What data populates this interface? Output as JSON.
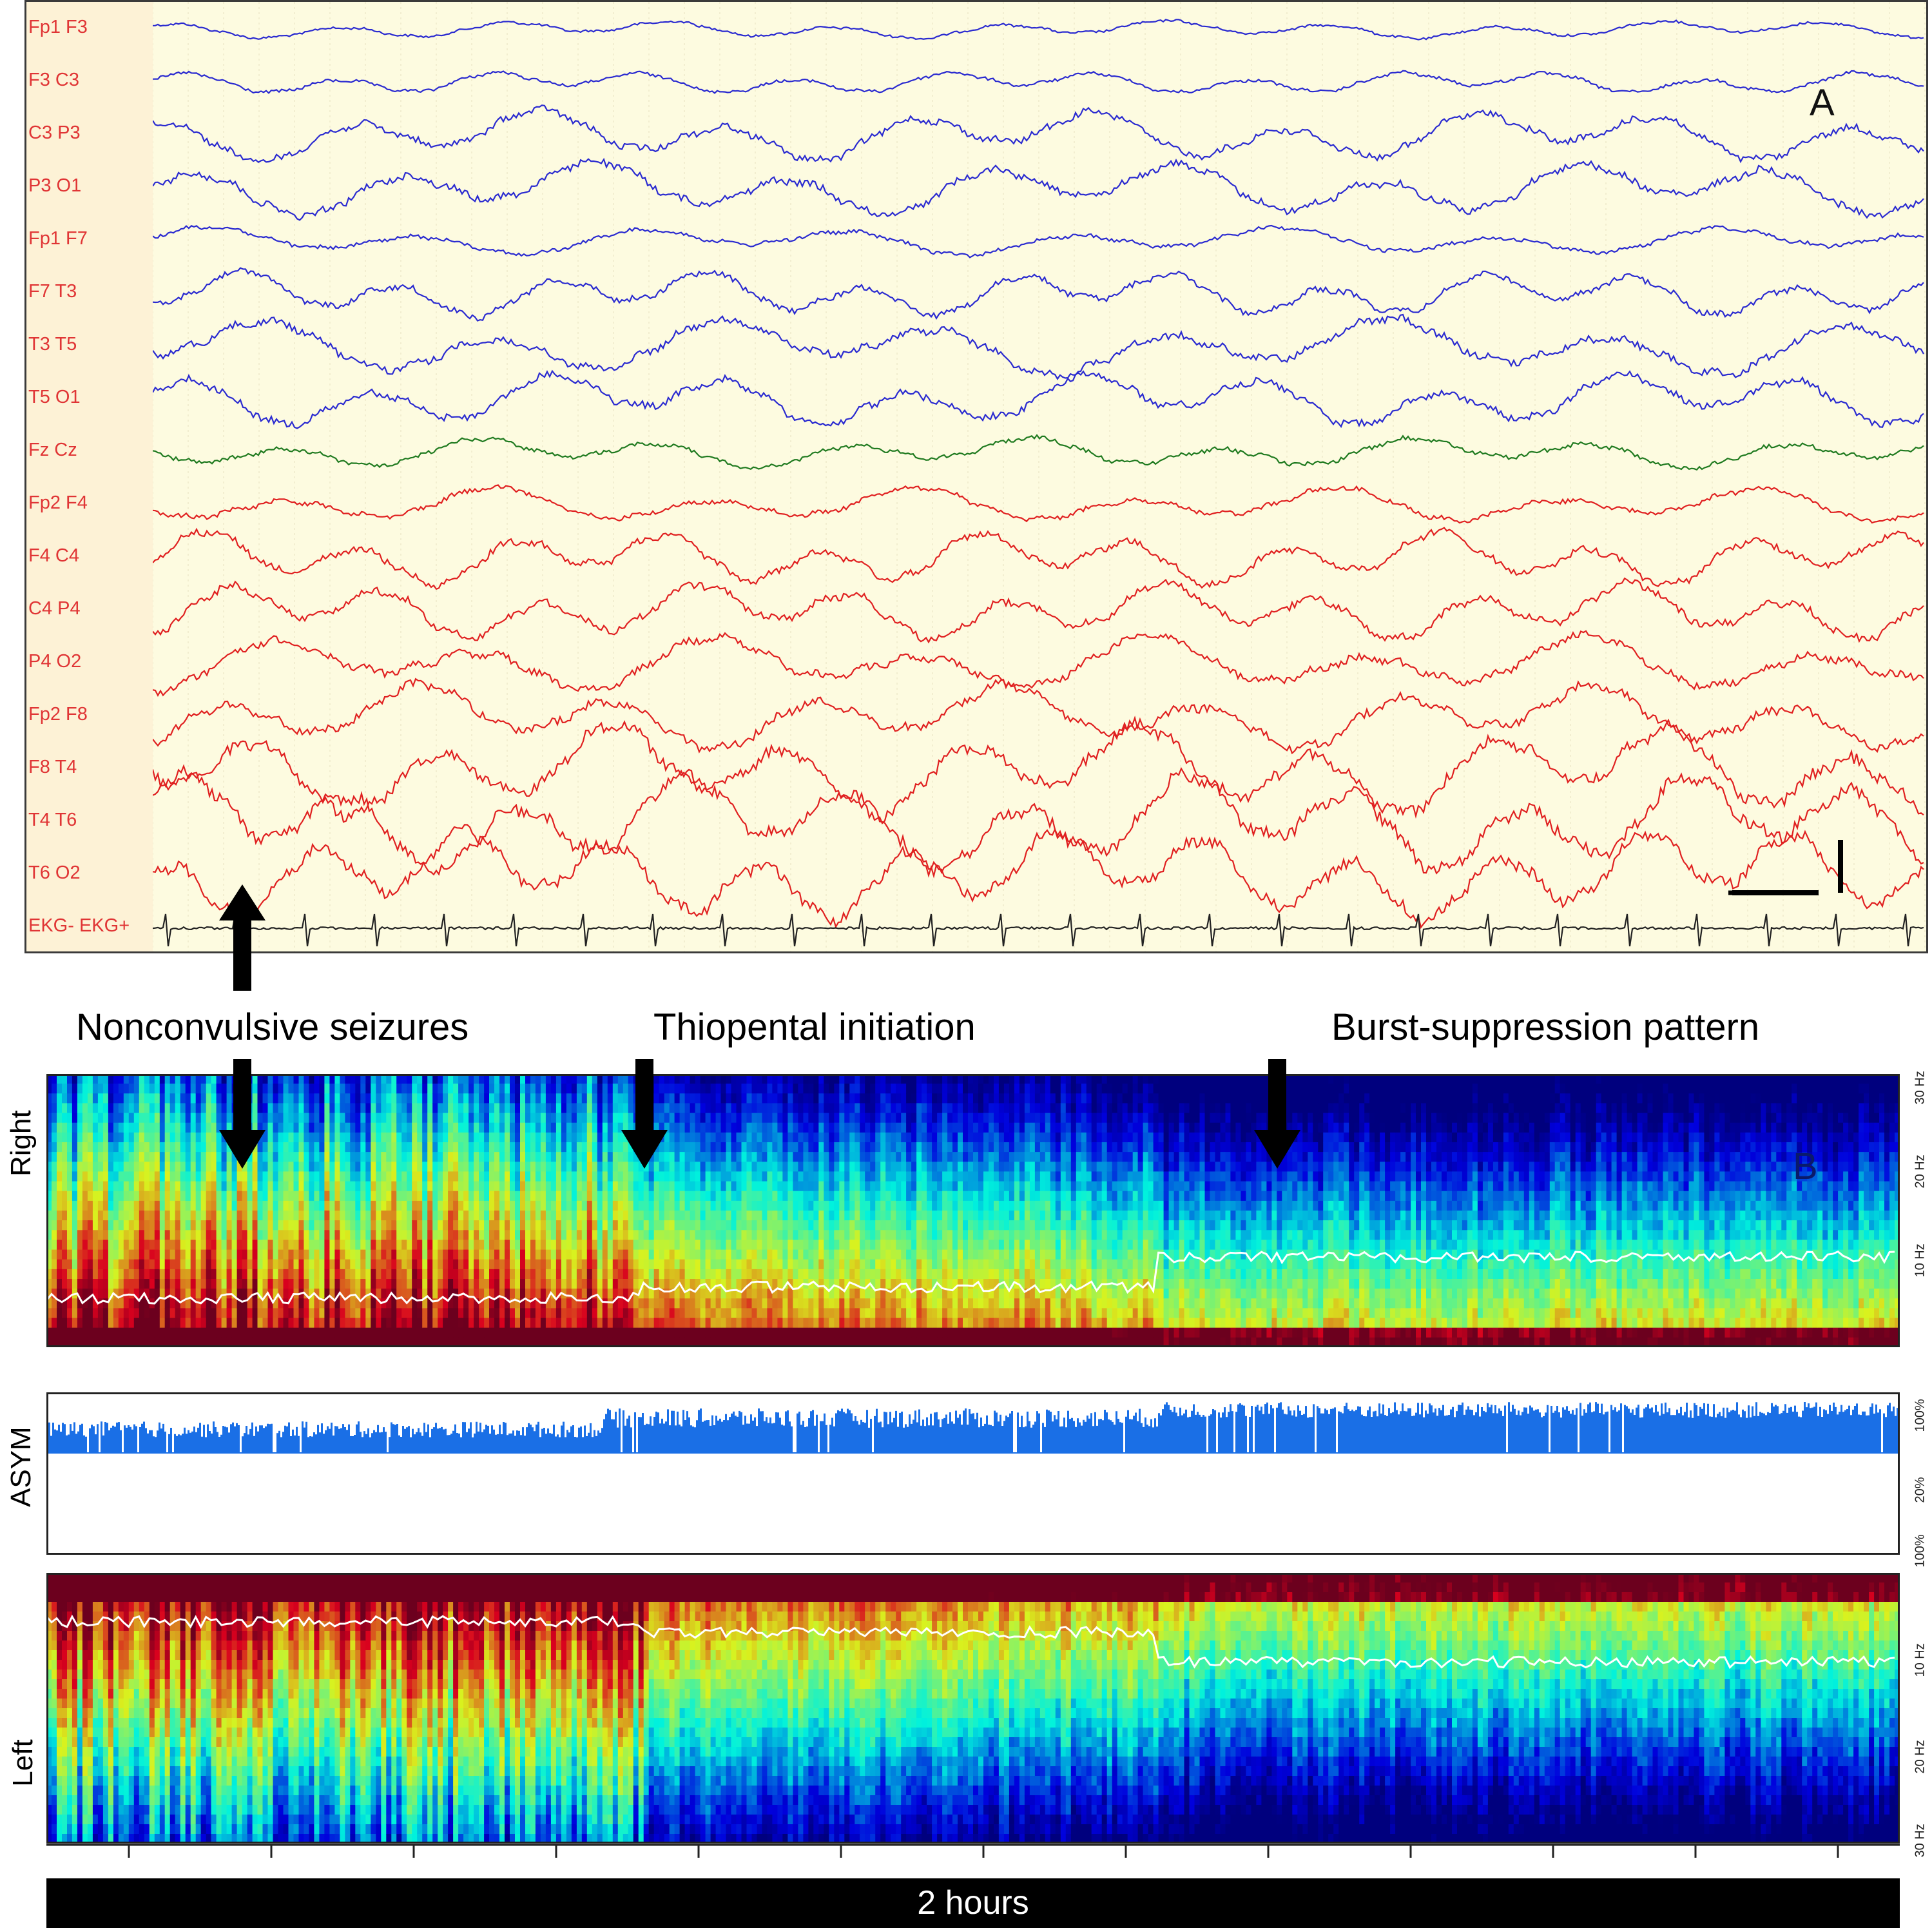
{
  "panel_a": {
    "letter": "A",
    "channels": [
      {
        "label": "Fp1 F3",
        "color": "#2a2ad0",
        "amp": 14
      },
      {
        "label": "F3 C3",
        "color": "#2a2ad0",
        "amp": 18
      },
      {
        "label": "C3 P3",
        "color": "#2a2ad0",
        "amp": 40
      },
      {
        "label": "P3 O1",
        "color": "#2a2ad0",
        "amp": 42
      },
      {
        "label": "Fp1 F7",
        "color": "#2a2ad0",
        "amp": 22
      },
      {
        "label": "F7 T3",
        "color": "#2a2ad0",
        "amp": 36
      },
      {
        "label": "T3 T5",
        "color": "#2a2ad0",
        "amp": 44
      },
      {
        "label": "T5 O1",
        "color": "#2a2ad0",
        "amp": 42
      },
      {
        "label": "Fz Cz",
        "color": "#1f7a1f",
        "amp": 24
      },
      {
        "label": "Fp2 F4",
        "color": "#e02020",
        "amp": 28
      },
      {
        "label": "F4 C4",
        "color": "#e02020",
        "amp": 42
      },
      {
        "label": "C4 P4",
        "color": "#e02020",
        "amp": 44
      },
      {
        "label": "P4 O2",
        "color": "#e02020",
        "amp": 44
      },
      {
        "label": "Fp2 F8",
        "color": "#e02020",
        "amp": 50
      },
      {
        "label": "F8 T4",
        "color": "#e02020",
        "amp": 70
      },
      {
        "label": "T4 T6",
        "color": "#e02020",
        "amp": 75
      },
      {
        "label": "T6 O2",
        "color": "#e02020",
        "amp": 70
      },
      {
        "label": "EKG- EKG+",
        "color": "#222222",
        "amp": 0
      }
    ]
  },
  "annotations": {
    "seizures": "Nonconvulsive seizures",
    "thiopental": "Thiopental initiation",
    "burst": "Burst-suppression pattern"
  },
  "panel_b": {
    "letter": "B",
    "right_label": "Right",
    "asym_label": "ASYM",
    "left_label": "Left",
    "right_ticks": [
      "30 Hz",
      "20 Hz",
      "10 Hz"
    ],
    "asym_ticks": [
      "100%",
      "20%",
      "100%"
    ],
    "left_ticks": [
      "10 Hz",
      "20 Hz",
      "30 Hz"
    ]
  },
  "footer": {
    "duration": "2 hours"
  }
}
